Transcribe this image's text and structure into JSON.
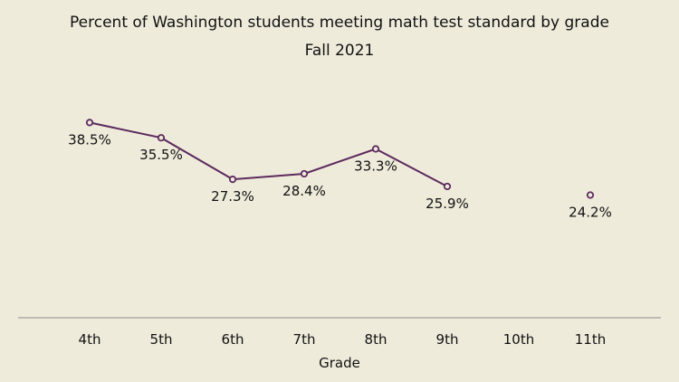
{
  "chart_data": {
    "type": "line",
    "title": "Percent of Washington students meeting math test standard by grade",
    "subtitle": "Fall 2021",
    "xlabel": "Grade",
    "ylabel": "",
    "categories": [
      "4th",
      "5th",
      "6th",
      "7th",
      "8th",
      "9th",
      "10th",
      "11th"
    ],
    "series": [
      {
        "values": [
          38.5,
          35.5,
          27.3,
          28.4,
          33.3,
          25.9,
          null,
          24.2
        ],
        "labels": [
          "38.5%",
          "35.5%",
          "27.3%",
          "28.4%",
          "33.3%",
          "25.9%",
          "",
          "24.2%"
        ],
        "color": "#5c2a5e"
      }
    ],
    "ylim": [
      0,
      50
    ],
    "grid": false,
    "legend": "none"
  },
  "colors": {
    "background": "#efebdb",
    "line": "#5c2a5e",
    "axis": "#8a8a8a"
  }
}
